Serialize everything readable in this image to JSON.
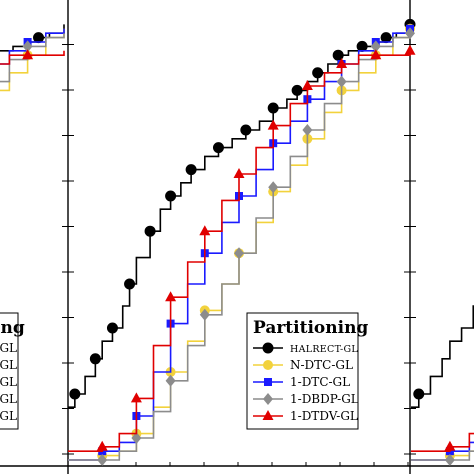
{
  "chart_data": {
    "type": "line",
    "description_scope": "cropped view of three adjacent step-line performance-profile panels; center panel fully visible",
    "axis_ticks": "tick marks present on left and right frames, no tick labels visible",
    "grid": false,
    "legend": {
      "title": "Partitioning",
      "placement": "bottom-right"
    },
    "series": [
      {
        "name": "HALRECT-GL",
        "color": "#000000",
        "marker": "circle",
        "x": [
          0.0,
          0.02,
          0.05,
          0.08,
          0.1,
          0.13,
          0.16,
          0.18,
          0.2,
          0.24,
          0.27,
          0.3,
          0.33,
          0.36,
          0.4,
          0.44,
          0.48,
          0.52,
          0.56,
          0.6,
          0.64,
          0.67,
          0.7,
          0.73,
          0.76,
          0.79,
          0.82,
          0.86,
          0.9,
          0.93,
          0.96,
          1.0
        ],
        "y": [
          0.12,
          0.15,
          0.19,
          0.23,
          0.27,
          0.3,
          0.35,
          0.4,
          0.46,
          0.52,
          0.57,
          0.6,
          0.63,
          0.66,
          0.69,
          0.71,
          0.73,
          0.75,
          0.77,
          0.8,
          0.82,
          0.84,
          0.86,
          0.88,
          0.9,
          0.92,
          0.93,
          0.94,
          0.95,
          0.96,
          0.97,
          0.99
        ]
      },
      {
        "name": "N-DTC-GL",
        "color": "#f2d23c",
        "marker": "circle",
        "x": [
          0.0,
          0.1,
          0.15,
          0.2,
          0.25,
          0.3,
          0.35,
          0.4,
          0.45,
          0.5,
          0.55,
          0.6,
          0.65,
          0.7,
          0.75,
          0.8,
          0.85,
          0.9,
          0.95,
          1.0
        ],
        "y": [
          0.0,
          0.01,
          0.02,
          0.06,
          0.12,
          0.2,
          0.27,
          0.34,
          0.4,
          0.47,
          0.54,
          0.61,
          0.67,
          0.73,
          0.79,
          0.84,
          0.88,
          0.92,
          0.96,
          0.98
        ]
      },
      {
        "name": "1-DTC-GL",
        "color": "#1a1aff",
        "marker": "square",
        "x": [
          0.0,
          0.1,
          0.15,
          0.2,
          0.25,
          0.3,
          0.35,
          0.4,
          0.45,
          0.5,
          0.55,
          0.6,
          0.65,
          0.7,
          0.75,
          0.8,
          0.85,
          0.9,
          0.95,
          1.0
        ],
        "y": [
          0.0,
          0.02,
          0.04,
          0.1,
          0.2,
          0.31,
          0.4,
          0.47,
          0.54,
          0.6,
          0.66,
          0.72,
          0.77,
          0.82,
          0.86,
          0.9,
          0.93,
          0.95,
          0.97,
          0.98
        ]
      },
      {
        "name": "1-DBDP-GL",
        "color": "#8c8c8c",
        "marker": "diamond",
        "x": [
          0.0,
          0.1,
          0.15,
          0.2,
          0.25,
          0.3,
          0.35,
          0.4,
          0.45,
          0.5,
          0.55,
          0.6,
          0.65,
          0.7,
          0.75,
          0.8,
          0.85,
          0.9,
          0.95,
          1.0
        ],
        "y": [
          0.0,
          0.0,
          0.02,
          0.05,
          0.11,
          0.18,
          0.26,
          0.33,
          0.4,
          0.47,
          0.55,
          0.62,
          0.69,
          0.75,
          0.81,
          0.86,
          0.91,
          0.94,
          0.96,
          0.97
        ]
      },
      {
        "name": "1-DTDV-GL",
        "color": "#e00000",
        "marker": "triangle",
        "x": [
          0.0,
          0.1,
          0.15,
          0.2,
          0.25,
          0.3,
          0.35,
          0.4,
          0.45,
          0.5,
          0.55,
          0.6,
          0.65,
          0.7,
          0.75,
          0.8,
          0.85,
          0.9,
          0.95,
          1.0
        ],
        "y": [
          0.02,
          0.03,
          0.06,
          0.14,
          0.26,
          0.37,
          0.45,
          0.52,
          0.59,
          0.65,
          0.71,
          0.76,
          0.81,
          0.85,
          0.88,
          0.9,
          0.92,
          0.92,
          0.92,
          0.93
        ]
      }
    ]
  },
  "left_legend_fragment": {
    "title_suffix": "ing",
    "labels": [
      "-GL",
      "-GL",
      "-GL",
      "P-GL",
      "V-GL"
    ]
  }
}
